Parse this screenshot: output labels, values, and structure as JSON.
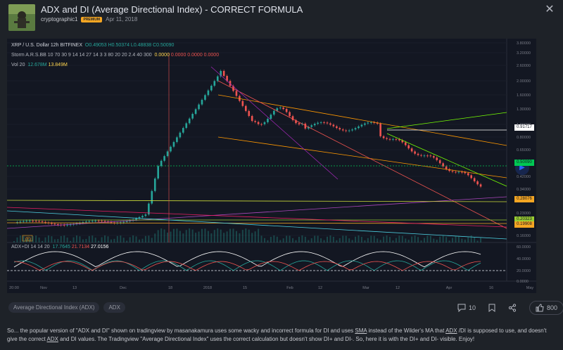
{
  "header": {
    "title": "ADX and DI (Average Directional Index) - CORRECT FORMULA",
    "author": "cryptographic1",
    "badge": "PREMIUM",
    "date": "Apr 11, 2018"
  },
  "chart": {
    "symbol_line": "XRP / U.S. Dollar  12h  BITFINEX",
    "ohlc": {
      "o": "O0.49053",
      "h": "H0.50374",
      "l": "L0.48838",
      "c": "C0.50090"
    },
    "storm": {
      "label": "Storm A.R.S.BB 10 70 30 9 14 14 27 14 3 3 80 20 20 2.4 40 300",
      "v1": "0.0000",
      "v2": "0.0000",
      "v3": "0.0000",
      "v4": "0.0000"
    },
    "vol": {
      "label": "Vol 20",
      "v1": "12.678M",
      "v2": "13.849M"
    },
    "adx": {
      "label": "ADX+DI 14 14 20",
      "v1": "17.7645",
      "v2": "21.7134",
      "v3": "27.0156"
    },
    "price_ticks": [
      "3.80000",
      "3.20000",
      "2.60000",
      "2.00000",
      "1.60000",
      "1.30000",
      "1.00000",
      "0.80000",
      "0.65000",
      "0.42000",
      "0.34000",
      "0.23000",
      "0.16000"
    ],
    "price_boxes": [
      {
        "label": "0.91717",
        "color": "#ffffff",
        "text": "#131722"
      },
      {
        "label": "0.50090",
        "color": "#00c853",
        "text": "#131722"
      },
      {
        "label": "0.28076",
        "color": "#f5a623",
        "text": "#131722"
      },
      {
        "label": "0.20323",
        "color": "#9acd32",
        "text": "#131722"
      },
      {
        "label": "0.19908",
        "color": "#f5a623",
        "text": "#131722"
      }
    ],
    "adx_ticks": [
      "60.0000",
      "40.0000",
      "20.0000",
      "0.0000"
    ],
    "time_ticks": [
      "20:00",
      "Nov",
      "13",
      "Dec",
      "18",
      "2018",
      "15",
      "Feb",
      "12",
      "Mar",
      "12",
      "Apr",
      "16",
      "May"
    ],
    "marker": "E",
    "colors": {
      "up": "#26a69a",
      "down": "#ef5350",
      "bg": "#131722",
      "grid": "#1f2430"
    }
  },
  "tags": [
    "Average Directional Index (ADX)",
    "ADX"
  ],
  "actions": {
    "comments": "10",
    "likes": "800"
  },
  "description": {
    "p1": "So... the popular version of \"ADX and DI\" shown on tradingview by masanakamura uses some wacky and incorrect formula for DI and uses ",
    "sma": "SMA",
    "p2": " instead of the Wilder's MA that ",
    "adx": "ADX",
    "p3": " /DI is supposed to use, and doesn't give the correct ",
    "adx2": "ADX",
    "p4": " and DI values. The Tradingview \"Average Directional Index\" uses the correct calculation but doesn't show DI+ and DI-. So, here it is with the DI+ and DI- visible. Enjoy!"
  }
}
